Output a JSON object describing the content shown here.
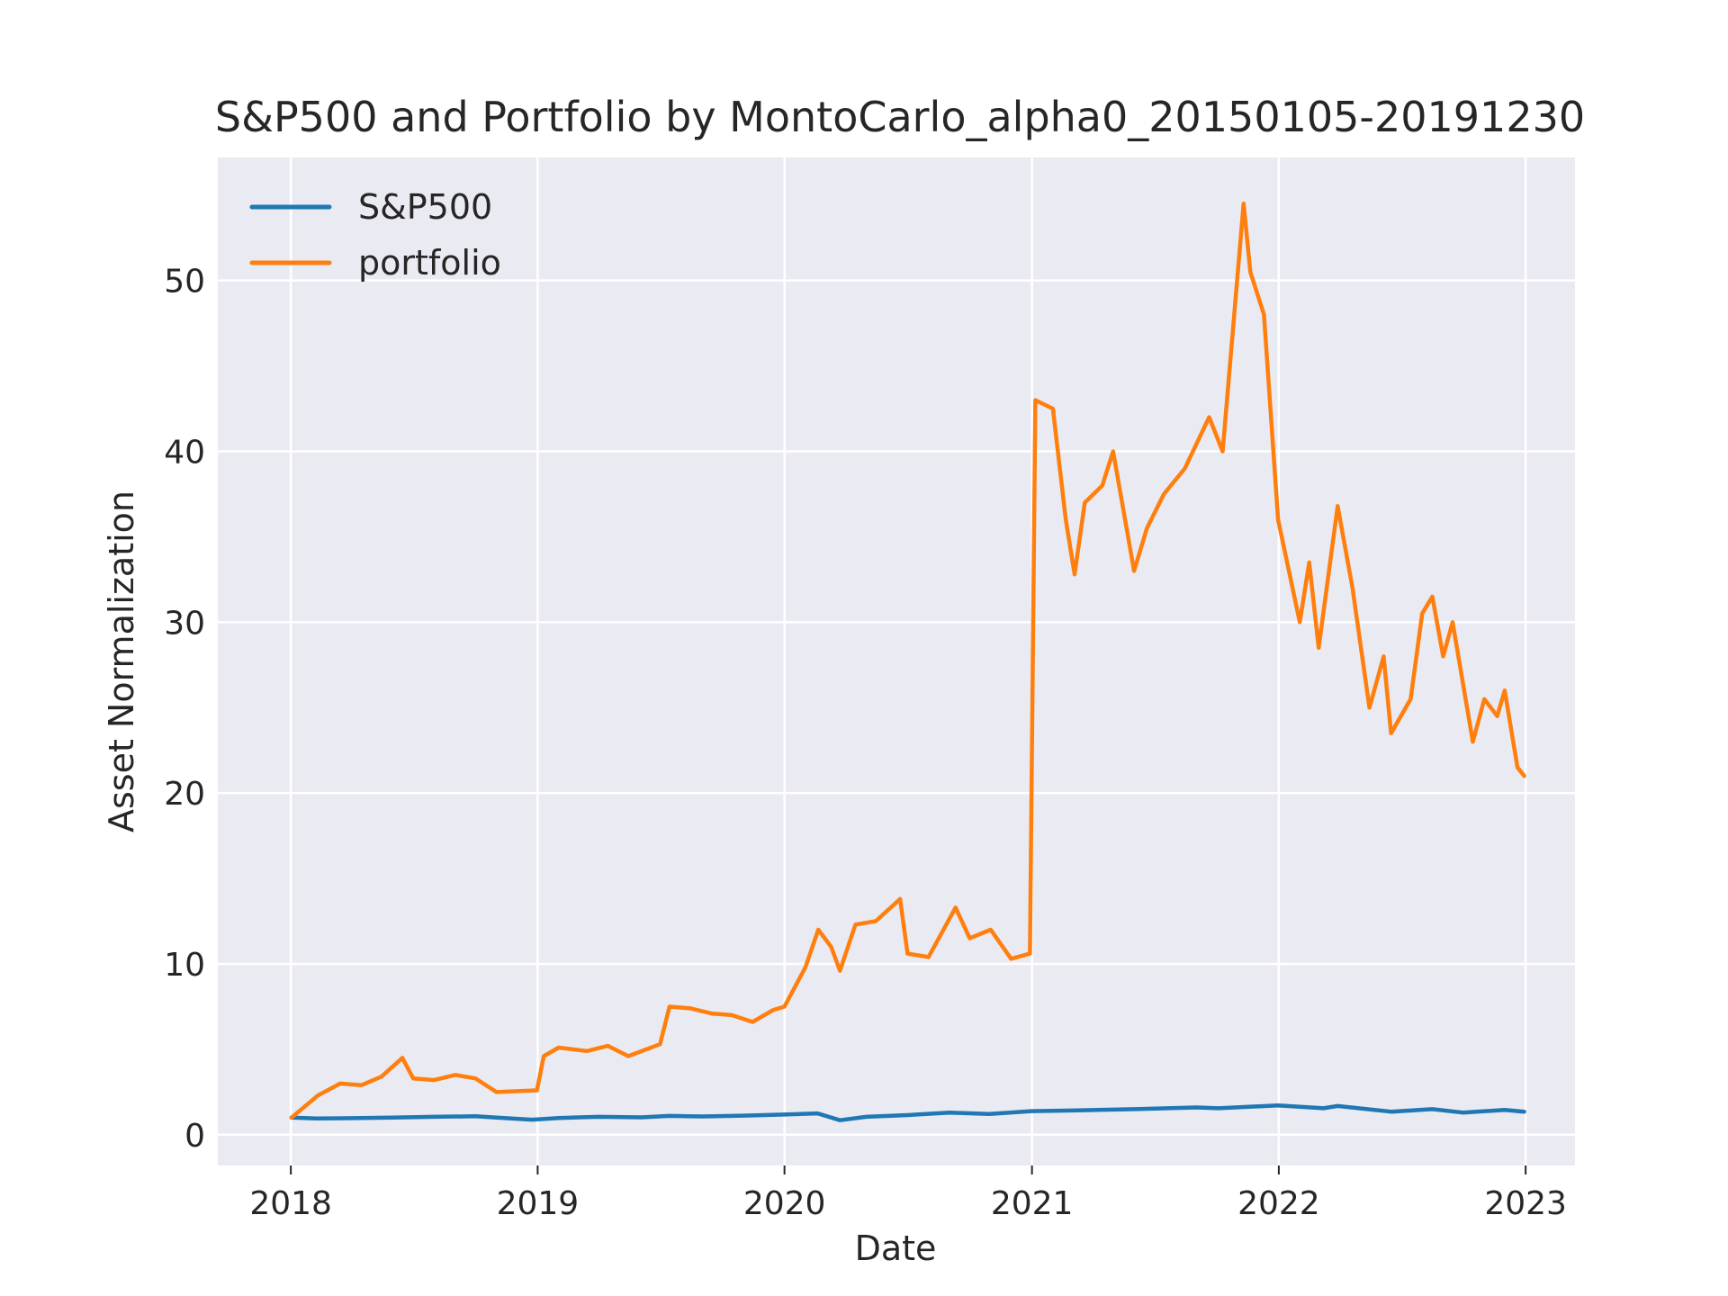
{
  "chart_data": {
    "type": "line",
    "title": "S&P500 and Portfolio by MontoCarlo_alpha0_20150105-20191230",
    "xlabel": "Date",
    "ylabel": "Asset Normalization",
    "x_ticks": [
      "2018",
      "2019",
      "2020",
      "2021",
      "2022",
      "2023"
    ],
    "y_ticks": [
      "0",
      "10",
      "20",
      "30",
      "40",
      "50"
    ],
    "xlim": [
      "2017-09-15",
      "2023-03-15"
    ],
    "ylim": [
      -1.8,
      57.2
    ],
    "grid": true,
    "legend_position": "top-left",
    "background_color": "#eaeaf2",
    "series": [
      {
        "name": "S&P500",
        "color": "#1f77b4",
        "points": [
          [
            "2018-01-02",
            1.0
          ],
          [
            "2018-02-08",
            0.95
          ],
          [
            "2018-04-02",
            0.97
          ],
          [
            "2018-06-01",
            1.0
          ],
          [
            "2018-08-01",
            1.05
          ],
          [
            "2018-10-01",
            1.08
          ],
          [
            "2018-11-01",
            1.0
          ],
          [
            "2018-12-24",
            0.88
          ],
          [
            "2019-02-01",
            0.98
          ],
          [
            "2019-04-01",
            1.05
          ],
          [
            "2019-06-03",
            1.02
          ],
          [
            "2019-07-15",
            1.1
          ],
          [
            "2019-09-02",
            1.07
          ],
          [
            "2019-11-01",
            1.12
          ],
          [
            "2019-12-31",
            1.18
          ],
          [
            "2020-02-19",
            1.25
          ],
          [
            "2020-03-23",
            0.85
          ],
          [
            "2020-05-01",
            1.05
          ],
          [
            "2020-07-01",
            1.15
          ],
          [
            "2020-09-01",
            1.3
          ],
          [
            "2020-10-30",
            1.22
          ],
          [
            "2020-12-31",
            1.38
          ],
          [
            "2021-03-01",
            1.42
          ],
          [
            "2021-06-01",
            1.5
          ],
          [
            "2021-09-01",
            1.6
          ],
          [
            "2021-10-04",
            1.55
          ],
          [
            "2021-12-31",
            1.72
          ],
          [
            "2022-03-08",
            1.55
          ],
          [
            "2022-03-29",
            1.68
          ],
          [
            "2022-06-16",
            1.35
          ],
          [
            "2022-08-16",
            1.5
          ],
          [
            "2022-09-30",
            1.3
          ],
          [
            "2022-12-01",
            1.45
          ],
          [
            "2022-12-30",
            1.35
          ]
        ]
      },
      {
        "name": "portfolio",
        "color": "#ff7f0e",
        "points": [
          [
            "2018-01-02",
            1.0
          ],
          [
            "2018-01-20",
            1.6
          ],
          [
            "2018-02-10",
            2.3
          ],
          [
            "2018-03-15",
            3.0
          ],
          [
            "2018-04-15",
            2.9
          ],
          [
            "2018-05-15",
            3.4
          ],
          [
            "2018-06-15",
            4.5
          ],
          [
            "2018-07-01",
            3.3
          ],
          [
            "2018-08-01",
            3.2
          ],
          [
            "2018-09-01",
            3.5
          ],
          [
            "2018-10-01",
            3.3
          ],
          [
            "2018-11-01",
            2.5
          ],
          [
            "2018-12-31",
            2.6
          ],
          [
            "2019-01-10",
            4.6
          ],
          [
            "2019-02-01",
            5.1
          ],
          [
            "2019-03-15",
            4.9
          ],
          [
            "2019-04-15",
            5.2
          ],
          [
            "2019-05-15",
            4.6
          ],
          [
            "2019-07-01",
            5.3
          ],
          [
            "2019-07-15",
            7.5
          ],
          [
            "2019-08-15",
            7.4
          ],
          [
            "2019-09-15",
            7.1
          ],
          [
            "2019-10-15",
            7.0
          ],
          [
            "2019-11-15",
            6.6
          ],
          [
            "2019-12-15",
            7.3
          ],
          [
            "2020-01-01",
            7.5
          ],
          [
            "2020-02-01",
            9.8
          ],
          [
            "2020-02-20",
            12.0
          ],
          [
            "2020-03-10",
            11.0
          ],
          [
            "2020-03-23",
            9.6
          ],
          [
            "2020-04-15",
            12.3
          ],
          [
            "2020-05-15",
            12.5
          ],
          [
            "2020-06-20",
            13.8
          ],
          [
            "2020-07-01",
            10.6
          ],
          [
            "2020-08-01",
            10.4
          ],
          [
            "2020-09-10",
            13.3
          ],
          [
            "2020-10-01",
            11.5
          ],
          [
            "2020-11-01",
            12.0
          ],
          [
            "2020-12-01",
            10.3
          ],
          [
            "2020-12-29",
            10.6
          ],
          [
            "2021-01-06",
            43.0
          ],
          [
            "2021-02-01",
            42.5
          ],
          [
            "2021-02-20",
            36.0
          ],
          [
            "2021-03-05",
            32.8
          ],
          [
            "2021-03-20",
            37.0
          ],
          [
            "2021-04-15",
            38.0
          ],
          [
            "2021-05-01",
            40.0
          ],
          [
            "2021-06-01",
            33.0
          ],
          [
            "2021-06-20",
            35.5
          ],
          [
            "2021-07-15",
            37.5
          ],
          [
            "2021-08-15",
            39.0
          ],
          [
            "2021-09-20",
            42.0
          ],
          [
            "2021-10-10",
            40.0
          ],
          [
            "2021-11-10",
            54.5
          ],
          [
            "2021-11-20",
            50.5
          ],
          [
            "2021-12-10",
            48.0
          ],
          [
            "2021-12-31",
            36.0
          ],
          [
            "2022-02-01",
            30.0
          ],
          [
            "2022-02-15",
            33.5
          ],
          [
            "2022-03-01",
            28.5
          ],
          [
            "2022-03-29",
            36.8
          ],
          [
            "2022-04-20",
            32.0
          ],
          [
            "2022-05-15",
            25.0
          ],
          [
            "2022-06-05",
            28.0
          ],
          [
            "2022-06-16",
            23.5
          ],
          [
            "2022-07-15",
            25.5
          ],
          [
            "2022-08-01",
            30.5
          ],
          [
            "2022-08-16",
            31.5
          ],
          [
            "2022-09-01",
            28.0
          ],
          [
            "2022-09-15",
            30.0
          ],
          [
            "2022-10-15",
            23.0
          ],
          [
            "2022-11-01",
            25.5
          ],
          [
            "2022-11-20",
            24.5
          ],
          [
            "2022-12-01",
            26.0
          ],
          [
            "2022-12-20",
            21.5
          ],
          [
            "2022-12-30",
            21.0
          ]
        ]
      }
    ]
  }
}
